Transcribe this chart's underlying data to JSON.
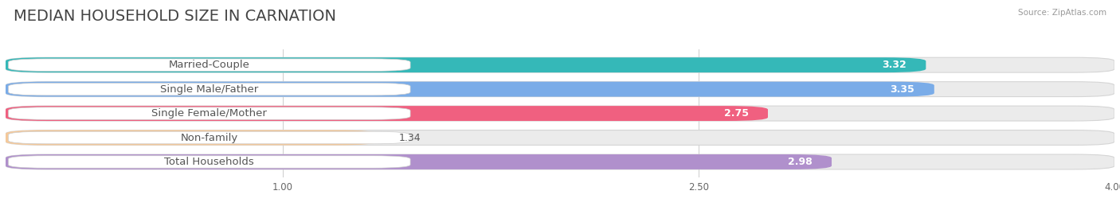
{
  "title": "MEDIAN HOUSEHOLD SIZE IN CARNATION",
  "source": "Source: ZipAtlas.com",
  "categories": [
    "Married-Couple",
    "Single Male/Father",
    "Single Female/Mother",
    "Non-family",
    "Total Households"
  ],
  "values": [
    3.32,
    3.35,
    2.75,
    1.34,
    2.98
  ],
  "bar_colors": [
    "#35b8b8",
    "#7aace8",
    "#f06080",
    "#f5c99a",
    "#b090cc"
  ],
  "bar_bg_color": "#ebebeb",
  "xlim": [
    0.0,
    4.0
  ],
  "xticks": [
    1.0,
    2.5,
    4.0
  ],
  "title_fontsize": 14,
  "label_fontsize": 9.5,
  "value_fontsize": 9,
  "bar_height": 0.62,
  "background_color": "#ffffff"
}
